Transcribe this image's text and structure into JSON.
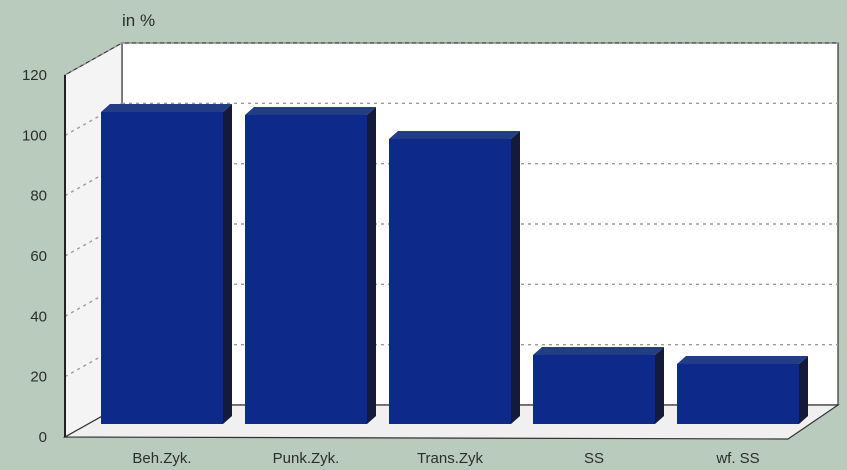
{
  "chart_data": {
    "type": "bar",
    "y_unit_label": "in %",
    "categories": [
      "Beh.Zyk.",
      "Punk.Zyk.",
      "Trans.Zyk",
      "SS",
      "wf. SS"
    ],
    "values": [
      104,
      103,
      95,
      23,
      20
    ],
    "ylim": [
      0,
      120
    ],
    "yticks": [
      0,
      20,
      40,
      60,
      80,
      100,
      120
    ],
    "grid": true,
    "style": "3d",
    "colors": {
      "bar_front": "#0d2a8a",
      "bar_top": "#233c86",
      "bar_side": "#141a3a",
      "plot_back": "#ffffff",
      "background": "#b9cbbd",
      "grid": "#9a9a9a"
    }
  }
}
